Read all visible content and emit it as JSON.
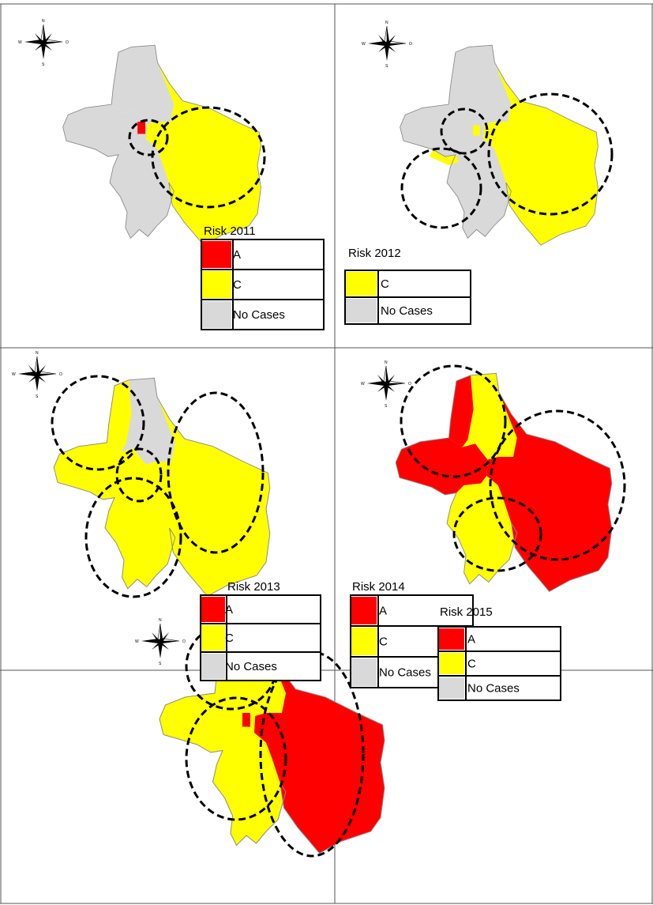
{
  "colors": {
    "A": "#ff0000",
    "C": "#ffff00",
    "none": "#d9d9d9",
    "outline": "#8a8a8a"
  },
  "compass": {
    "n": "N",
    "s": "S",
    "w": "W",
    "e": "O"
  },
  "panels": [
    {
      "year": "2011",
      "legend_title": "Risk 2011",
      "legend": [
        {
          "class": "A",
          "label": "A"
        },
        {
          "class": "C",
          "label": "C"
        },
        {
          "class": "none",
          "label": "No Cases"
        }
      ]
    },
    {
      "year": "2012",
      "legend_title": "Risk 2012",
      "legend": [
        {
          "class": "C",
          "label": "C"
        },
        {
          "class": "none",
          "label": "No Cases"
        }
      ]
    },
    {
      "year": "2013",
      "legend_title": "Risk 2013",
      "legend": [
        {
          "class": "A",
          "label": "A"
        },
        {
          "class": "C",
          "label": "C"
        },
        {
          "class": "none",
          "label": "No Cases"
        }
      ]
    },
    {
      "year": "2014",
      "legend_title": "Risk 2014",
      "legend": [
        {
          "class": "A",
          "label": "A"
        },
        {
          "class": "C",
          "label": "C"
        },
        {
          "class": "none",
          "label": "No Cases"
        }
      ]
    },
    {
      "year": "2015",
      "legend_title": "Risk 2015",
      "legend": [
        {
          "class": "A",
          "label": "A"
        },
        {
          "class": "C",
          "label": "C"
        },
        {
          "class": "none",
          "label": "No Cases"
        }
      ]
    }
  ]
}
